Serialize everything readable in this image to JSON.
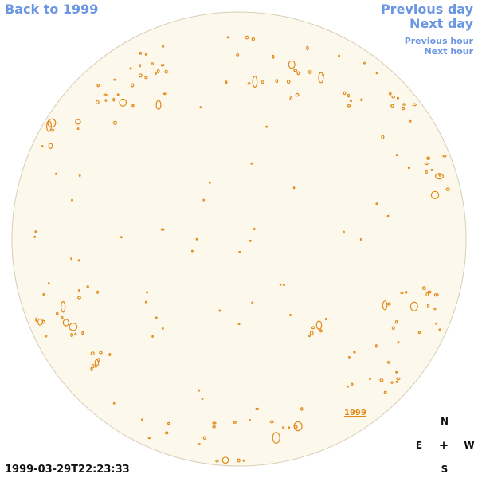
{
  "nav": {
    "back_label": "Back to 1999",
    "previous_day_label": "Previous day",
    "next_day_label": "Next day",
    "previous_hour_label": "Previous hour",
    "next_hour_label": "Next hour"
  },
  "image": {
    "year_label": "1999",
    "timestamp": "1999-03-29T22:23:33"
  },
  "compass": {
    "north": "N",
    "east": "E",
    "center": "+",
    "west": "W",
    "south": "S"
  },
  "colors": {
    "link": "#6b96e3",
    "disk_fill": "#fdf8ec",
    "disk_edge": "#d8cdb8",
    "contour": "#e08a1a"
  }
}
